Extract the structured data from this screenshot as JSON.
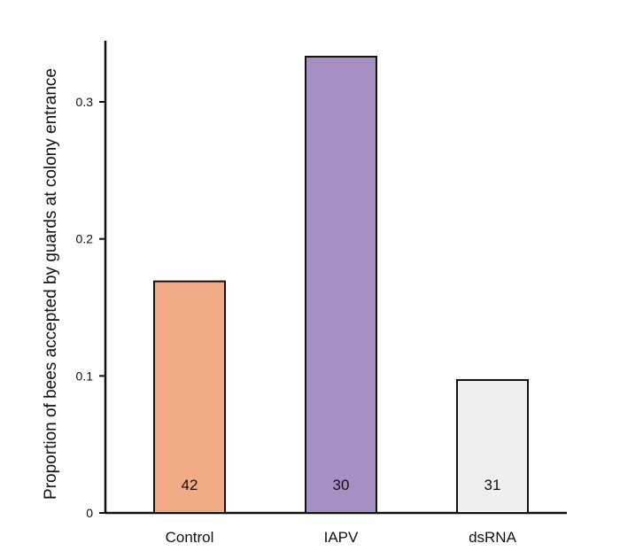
{
  "chart_data": {
    "type": "bar",
    "categories": [
      "Control",
      "IAPV",
      "dsRNA"
    ],
    "values": [
      0.169,
      0.333,
      0.097
    ],
    "counts": [
      "42",
      "30",
      "31"
    ],
    "colors": [
      "#f2ab84",
      "#a690c3",
      "#efefef"
    ],
    "ylabel": "Proportion of bees accepted by guards at colony entrance",
    "ylim": [
      0,
      0.34
    ],
    "yticks": [
      0,
      0.1,
      0.2,
      0.3
    ],
    "ytick_labels": [
      "0",
      "0.1",
      "0.2",
      "0.3"
    ],
    "grid": false
  }
}
